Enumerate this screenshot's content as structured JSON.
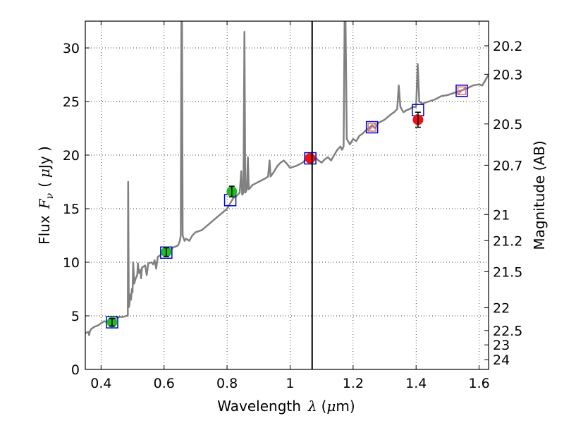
{
  "chart_data": {
    "type": "line",
    "xlabel_text": "Wavelength",
    "xlabel_symbol": "λ",
    "xlabel_unit_open": "(",
    "xlabel_unit_mu": "μ",
    "xlabel_unit_rest": "m)",
    "ylabel_text": "Flux",
    "ylabel_symbol": "F",
    "ylabel_sub": "ν",
    "ylabel_unit_open": "(",
    "ylabel_unit_mu": "μ",
    "ylabel_unit_rest": "Jy )",
    "y2label": "Magnitude (AB)",
    "xlim": [
      0.35,
      1.63
    ],
    "ylim": [
      0,
      32.5
    ],
    "grid": true,
    "x_ticks": [
      {
        "v": 0.4,
        "label": "0.4"
      },
      {
        "v": 0.6,
        "label": "0.6"
      },
      {
        "v": 0.8,
        "label": "0.8"
      },
      {
        "v": 1.0,
        "label": "1"
      },
      {
        "v": 1.2,
        "label": "1.2"
      },
      {
        "v": 1.4,
        "label": "1.4"
      },
      {
        "v": 1.6,
        "label": "1.6"
      }
    ],
    "y_ticks": [
      {
        "v": 0,
        "label": "0"
      },
      {
        "v": 5,
        "label": "5"
      },
      {
        "v": 10,
        "label": "10"
      },
      {
        "v": 15,
        "label": "15"
      },
      {
        "v": 20,
        "label": "20"
      },
      {
        "v": 25,
        "label": "25"
      },
      {
        "v": 30,
        "label": "30"
      }
    ],
    "y2_ticks": [
      {
        "mag": 20.2,
        "label": "20.2"
      },
      {
        "mag": 20.3,
        "label": "20.3"
      },
      {
        "mag": 20.5,
        "label": "20.5"
      },
      {
        "mag": 20.7,
        "label": "20.7"
      },
      {
        "mag": 21,
        "label": "21"
      },
      {
        "mag": 21.2,
        "label": "21.2"
      },
      {
        "mag": 21.5,
        "label": "21.5"
      },
      {
        "mag": 22,
        "label": "22"
      },
      {
        "mag": 22.5,
        "label": "22.5"
      },
      {
        "mag": 23,
        "label": "23"
      },
      {
        "mag": 24,
        "label": "24"
      }
    ],
    "vline_x": 1.07,
    "colors": {
      "spectrum": "#808080",
      "model_box": "#0000cc",
      "green_point": "#22bb22",
      "red_point": "#ee1111",
      "crossed_box": "#e07070",
      "vline": "#000000"
    },
    "spectrum": [
      [
        0.35,
        3.4
      ],
      [
        0.36,
        3.5
      ],
      [
        0.362,
        3.2
      ],
      [
        0.365,
        3.6
      ],
      [
        0.37,
        3.8
      ],
      [
        0.38,
        4.0
      ],
      [
        0.39,
        4.1
      ],
      [
        0.4,
        4.3
      ],
      [
        0.41,
        4.5
      ],
      [
        0.42,
        4.4
      ],
      [
        0.43,
        4.6
      ],
      [
        0.44,
        4.7
      ],
      [
        0.45,
        4.8
      ],
      [
        0.46,
        4.9
      ],
      [
        0.47,
        4.9
      ],
      [
        0.48,
        5.0
      ],
      [
        0.485,
        5.0
      ],
      [
        0.486,
        17.5
      ],
      [
        0.488,
        5.8
      ],
      [
        0.49,
        6.0
      ],
      [
        0.492,
        7.0
      ],
      [
        0.495,
        6.5
      ],
      [
        0.498,
        7.5
      ],
      [
        0.5,
        7.2
      ],
      [
        0.502,
        10.0
      ],
      [
        0.505,
        8.0
      ],
      [
        0.51,
        8.5
      ],
      [
        0.515,
        8.8
      ],
      [
        0.517,
        9.9
      ],
      [
        0.52,
        9.0
      ],
      [
        0.525,
        9.3
      ],
      [
        0.527,
        8.5
      ],
      [
        0.53,
        9.5
      ],
      [
        0.54,
        9.7
      ],
      [
        0.545,
        8.8
      ],
      [
        0.55,
        9.9
      ],
      [
        0.56,
        10.0
      ],
      [
        0.565,
        9.8
      ],
      [
        0.57,
        10.2
      ],
      [
        0.575,
        9.4
      ],
      [
        0.58,
        10.5
      ],
      [
        0.59,
        10.7
      ],
      [
        0.6,
        10.9
      ],
      [
        0.61,
        11.0
      ],
      [
        0.62,
        11.2
      ],
      [
        0.63,
        11.4
      ],
      [
        0.64,
        11.5
      ],
      [
        0.645,
        11.6
      ],
      [
        0.65,
        12.0
      ],
      [
        0.653,
        12.5
      ],
      [
        0.655,
        32.5
      ],
      [
        0.657,
        32.5
      ],
      [
        0.659,
        12.5
      ],
      [
        0.665,
        12.0
      ],
      [
        0.67,
        12.2
      ],
      [
        0.68,
        12.0
      ],
      [
        0.69,
        12.5
      ],
      [
        0.7,
        12.8
      ],
      [
        0.72,
        13.0
      ],
      [
        0.74,
        13.5
      ],
      [
        0.76,
        14.0
      ],
      [
        0.78,
        14.5
      ],
      [
        0.8,
        15.0
      ],
      [
        0.81,
        15.5
      ],
      [
        0.82,
        16.0
      ],
      [
        0.83,
        16.2
      ],
      [
        0.84,
        16.5
      ],
      [
        0.845,
        18.5
      ],
      [
        0.848,
        16.3
      ],
      [
        0.852,
        16.5
      ],
      [
        0.855,
        31.5
      ],
      [
        0.858,
        16.5
      ],
      [
        0.863,
        16.8
      ],
      [
        0.866,
        19.8
      ],
      [
        0.869,
        16.8
      ],
      [
        0.875,
        17.0
      ],
      [
        0.88,
        17.2
      ],
      [
        0.9,
        17.5
      ],
      [
        0.92,
        17.8
      ],
      [
        0.93,
        18.0
      ],
      [
        0.935,
        19.5
      ],
      [
        0.938,
        18.0
      ],
      [
        0.95,
        18.5
      ],
      [
        0.96,
        19.0
      ],
      [
        0.97,
        19.3
      ],
      [
        0.98,
        19.5
      ],
      [
        0.99,
        19.2
      ],
      [
        1.0,
        18.8
      ],
      [
        1.02,
        19.0
      ],
      [
        1.04,
        19.3
      ],
      [
        1.05,
        19.6
      ],
      [
        1.06,
        19.8
      ],
      [
        1.07,
        19.6
      ],
      [
        1.08,
        19.8
      ],
      [
        1.09,
        19.5
      ],
      [
        1.1,
        19.3
      ],
      [
        1.11,
        19.6
      ],
      [
        1.12,
        19.8
      ],
      [
        1.13,
        19.5
      ],
      [
        1.14,
        20.0
      ],
      [
        1.15,
        20.5
      ],
      [
        1.16,
        20.8
      ],
      [
        1.165,
        20.5
      ],
      [
        1.17,
        20.8
      ],
      [
        1.173,
        32.5
      ],
      [
        1.176,
        32.5
      ],
      [
        1.18,
        21.5
      ],
      [
        1.19,
        21.0
      ],
      [
        1.2,
        21.5
      ],
      [
        1.21,
        21.3
      ],
      [
        1.22,
        21.8
      ],
      [
        1.23,
        22.0
      ],
      [
        1.24,
        22.3
      ],
      [
        1.25,
        22.5
      ],
      [
        1.26,
        22.8
      ],
      [
        1.27,
        22.5
      ],
      [
        1.28,
        23.0
      ],
      [
        1.3,
        23.3
      ],
      [
        1.32,
        23.8
      ],
      [
        1.33,
        24.0
      ],
      [
        1.34,
        24.3
      ],
      [
        1.345,
        26.5
      ],
      [
        1.35,
        24.5
      ],
      [
        1.36,
        24.0
      ],
      [
        1.37,
        24.2
      ],
      [
        1.38,
        24.3
      ],
      [
        1.39,
        24.5
      ],
      [
        1.4,
        24.5
      ],
      [
        1.405,
        28.5
      ],
      [
        1.41,
        25.0
      ],
      [
        1.42,
        24.8
      ],
      [
        1.44,
        25.0
      ],
      [
        1.46,
        25.2
      ],
      [
        1.48,
        25.5
      ],
      [
        1.5,
        25.6
      ],
      [
        1.52,
        25.8
      ],
      [
        1.54,
        26.0
      ],
      [
        1.56,
        26.2
      ],
      [
        1.58,
        26.5
      ],
      [
        1.6,
        26.6
      ],
      [
        1.61,
        26.5
      ],
      [
        1.62,
        27.0
      ],
      [
        1.63,
        27.5
      ]
    ],
    "model_points": [
      {
        "x": 0.435,
        "y": 4.4
      },
      {
        "x": 0.607,
        "y": 10.9
      },
      {
        "x": 0.81,
        "y": 15.8
      },
      {
        "x": 1.064,
        "y": 19.7
      },
      {
        "x": 1.26,
        "y": 22.6
      },
      {
        "x": 1.406,
        "y": 24.2
      },
      {
        "x": 1.545,
        "y": 26.0
      }
    ],
    "observed_green": [
      {
        "x": 0.435,
        "y": 4.4,
        "err": 0.35
      },
      {
        "x": 0.607,
        "y": 10.95,
        "err": 0.4
      },
      {
        "x": 0.815,
        "y": 16.6,
        "err": 0.5
      }
    ],
    "observed_red": [
      {
        "x": 1.064,
        "y": 19.7,
        "err": 0
      },
      {
        "x": 1.406,
        "y": 23.3,
        "err": 0.7
      }
    ],
    "crossed_points": [
      {
        "x": 1.26,
        "y": 22.6
      },
      {
        "x": 1.545,
        "y": 26.0
      }
    ]
  }
}
